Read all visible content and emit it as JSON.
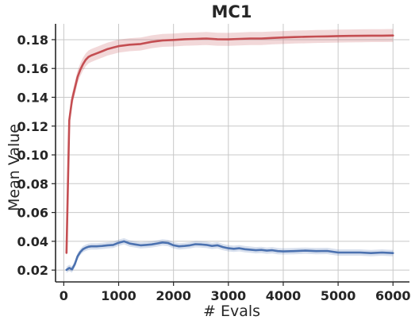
{
  "chart_data": {
    "type": "line",
    "title": "MC1",
    "xlabel": "# Evals",
    "ylabel": "Mean Value",
    "xlim": [
      -150,
      6300
    ],
    "ylim": [
      0.0118,
      0.191
    ],
    "xticks": [
      0,
      1000,
      2000,
      3000,
      4000,
      5000,
      6000
    ],
    "xtick_labels": [
      "0",
      "1000",
      "2000",
      "3000",
      "4000",
      "5000",
      "6000"
    ],
    "yticks": [
      0.02,
      0.04,
      0.06,
      0.08,
      0.1,
      0.12,
      0.14,
      0.16,
      0.18
    ],
    "ytick_labels": [
      "0.02",
      "0.04",
      "0.06",
      "0.08",
      "0.10",
      "0.12",
      "0.14",
      "0.16",
      "0.18"
    ],
    "grid": true,
    "colors": {
      "series_1": "#c44e52",
      "series_2": "#4c72b0"
    },
    "series": [
      {
        "color": "#c44e52",
        "band": 0.0045,
        "x": [
          50,
          100,
          150,
          200,
          250,
          300,
          350,
          400,
          450,
          500,
          600,
          700,
          800,
          900,
          1000,
          1200,
          1400,
          1600,
          1800,
          2000,
          2200,
          2400,
          2600,
          2800,
          3000,
          3200,
          3400,
          3600,
          3800,
          4000,
          4200,
          4400,
          4600,
          4800,
          5000,
          5200,
          5400,
          5600,
          5800,
          6000
        ],
        "y": [
          0.032,
          0.124,
          0.138,
          0.146,
          0.154,
          0.159,
          0.163,
          0.166,
          0.168,
          0.169,
          0.1705,
          0.172,
          0.1735,
          0.1745,
          0.1755,
          0.1765,
          0.177,
          0.1785,
          0.1795,
          0.1798,
          0.1803,
          0.1805,
          0.1808,
          0.1803,
          0.1802,
          0.1805,
          0.1808,
          0.1808,
          0.1812,
          0.1815,
          0.1818,
          0.182,
          0.1822,
          0.1823,
          0.1825,
          0.1826,
          0.1827,
          0.1828,
          0.1828,
          0.1829
        ]
      },
      {
        "color": "#4c72b0",
        "band": 0.0022,
        "x": [
          50,
          100,
          150,
          200,
          250,
          300,
          350,
          400,
          450,
          500,
          600,
          700,
          800,
          900,
          1000,
          1100,
          1200,
          1300,
          1400,
          1500,
          1600,
          1700,
          1800,
          1900,
          2000,
          2100,
          2200,
          2300,
          2400,
          2500,
          2600,
          2700,
          2800,
          2900,
          3000,
          3100,
          3200,
          3300,
          3400,
          3500,
          3600,
          3700,
          3800,
          3900,
          4000,
          4200,
          4400,
          4600,
          4800,
          5000,
          5200,
          5400,
          5600,
          5800,
          6000
        ],
        "y": [
          0.0202,
          0.0215,
          0.0205,
          0.024,
          0.0295,
          0.0325,
          0.0345,
          0.0355,
          0.0362,
          0.0365,
          0.0365,
          0.0368,
          0.0372,
          0.0375,
          0.039,
          0.04,
          0.0385,
          0.0378,
          0.0372,
          0.0375,
          0.0378,
          0.0385,
          0.0392,
          0.0388,
          0.0372,
          0.0365,
          0.0368,
          0.0372,
          0.038,
          0.0378,
          0.0375,
          0.0368,
          0.0372,
          0.036,
          0.0352,
          0.0348,
          0.0352,
          0.0345,
          0.0342,
          0.0338,
          0.034,
          0.0335,
          0.0338,
          0.0332,
          0.033,
          0.0332,
          0.0335,
          0.0332,
          0.0333,
          0.0322,
          0.0322,
          0.0322,
          0.0318,
          0.0322,
          0.0318
        ]
      }
    ]
  }
}
